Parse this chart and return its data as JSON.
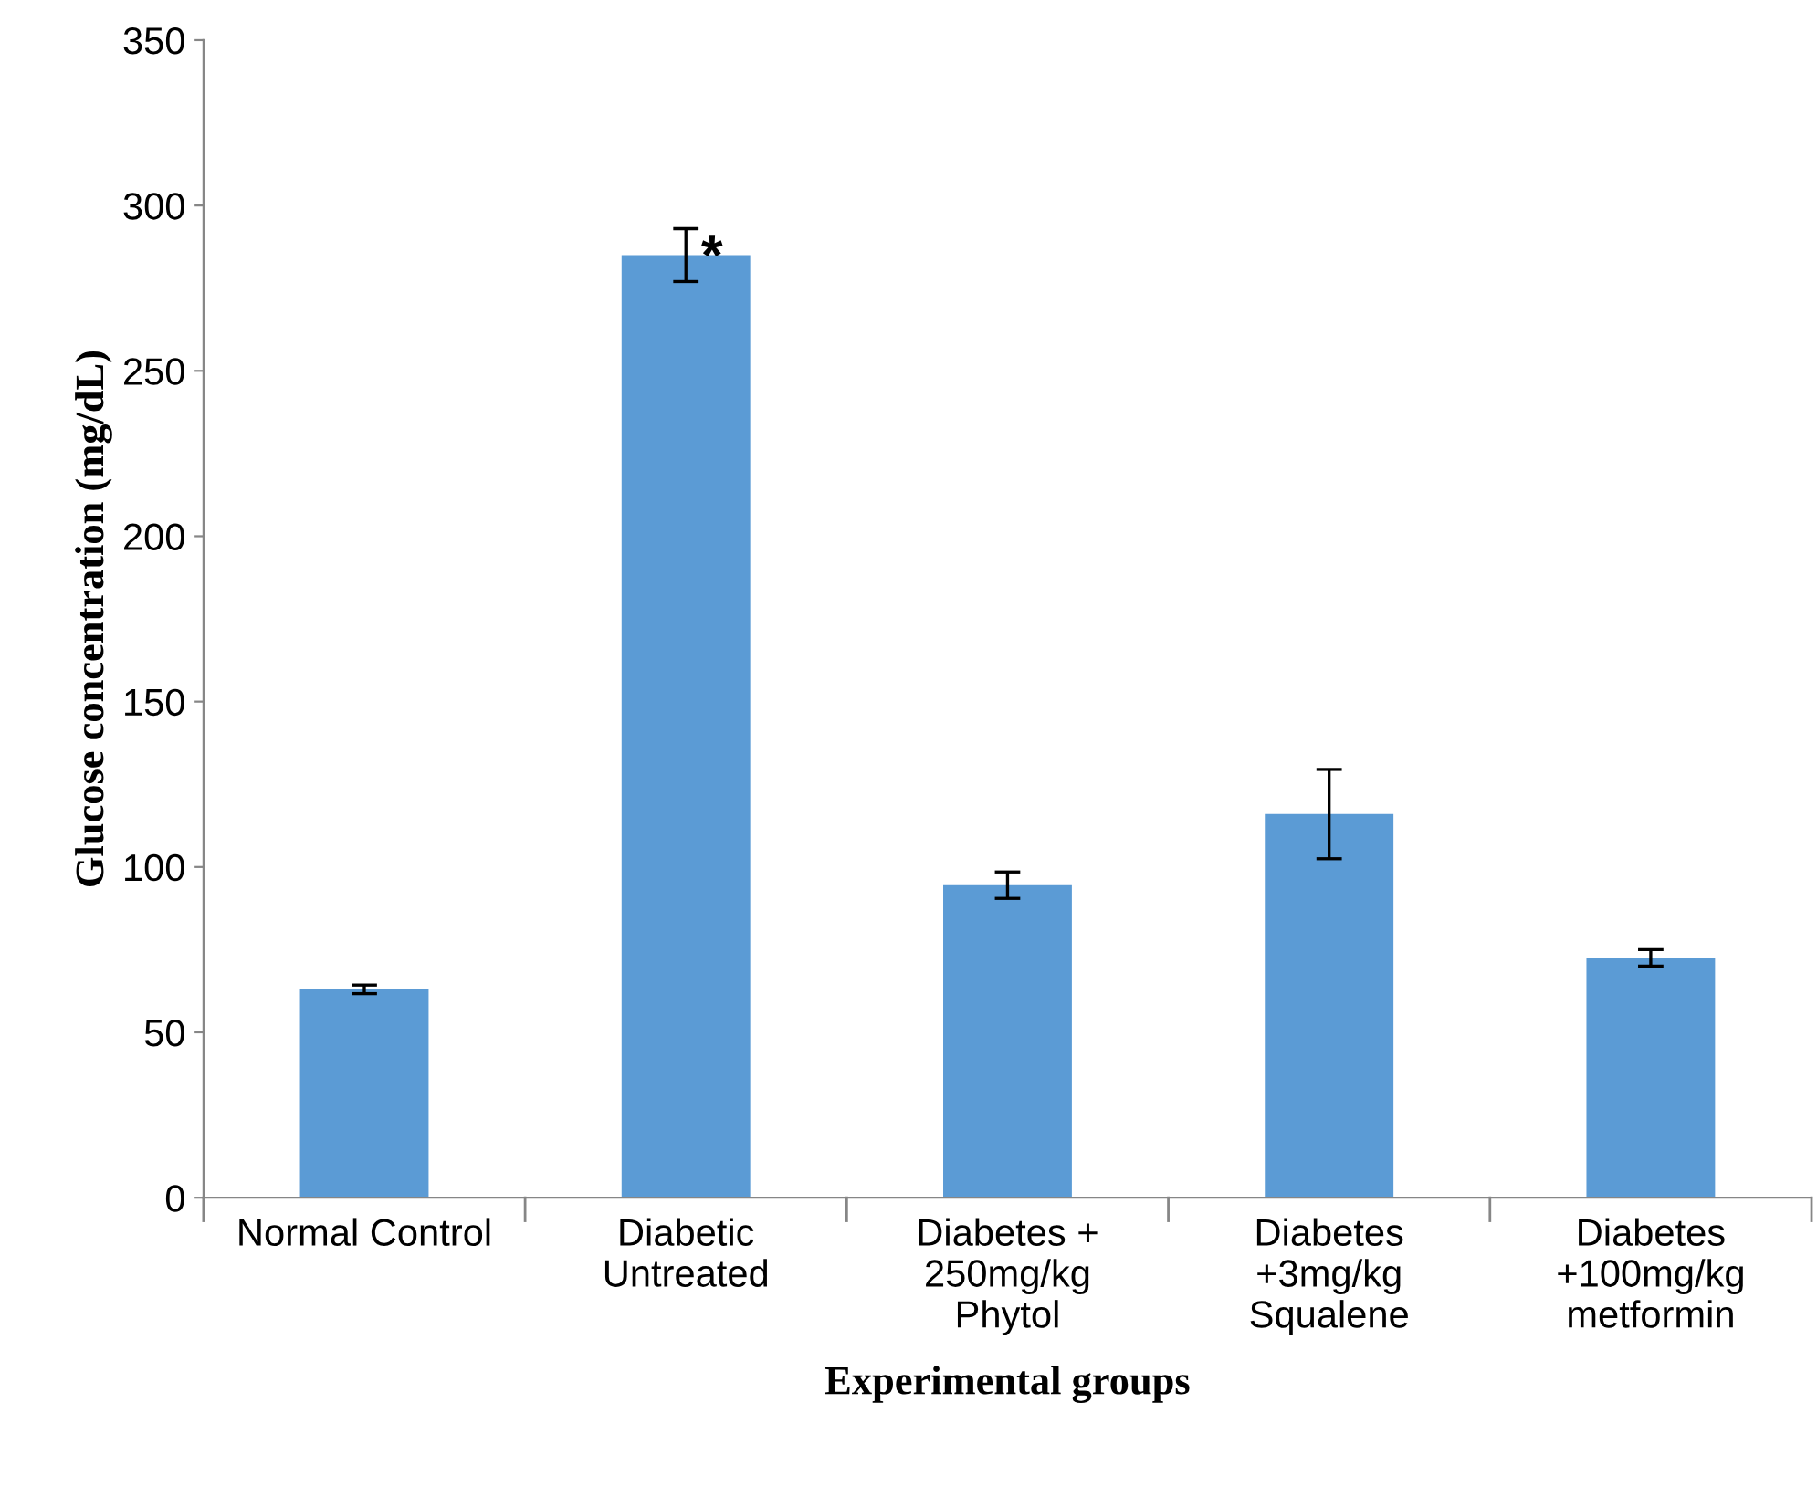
{
  "chart_data": {
    "type": "bar",
    "xlabel": "Experimental groups",
    "ylabel": "Glucose concentration (mg/dL)",
    "categories": [
      "Normal Control",
      "Diabetic\nUntreated",
      "Diabetes +\n250mg/kg\nPhytol",
      "Diabetes\n+3mg/kg\nSqualene",
      "Diabetes\n+100mg/kg\nmetformin"
    ],
    "values": [
      63,
      285,
      94.5,
      116,
      72.5
    ],
    "errors": [
      1.3,
      8,
      4,
      13.5,
      2.5
    ],
    "color": "#5b9bd5",
    "ylim": [
      0,
      350
    ],
    "yticks": [
      0,
      50,
      100,
      150,
      200,
      250,
      300,
      350
    ],
    "annotations": [
      {
        "text": "*",
        "x": "Diabetic\nUntreated",
        "y": 293
      }
    ],
    "grid": false,
    "legend": false
  }
}
